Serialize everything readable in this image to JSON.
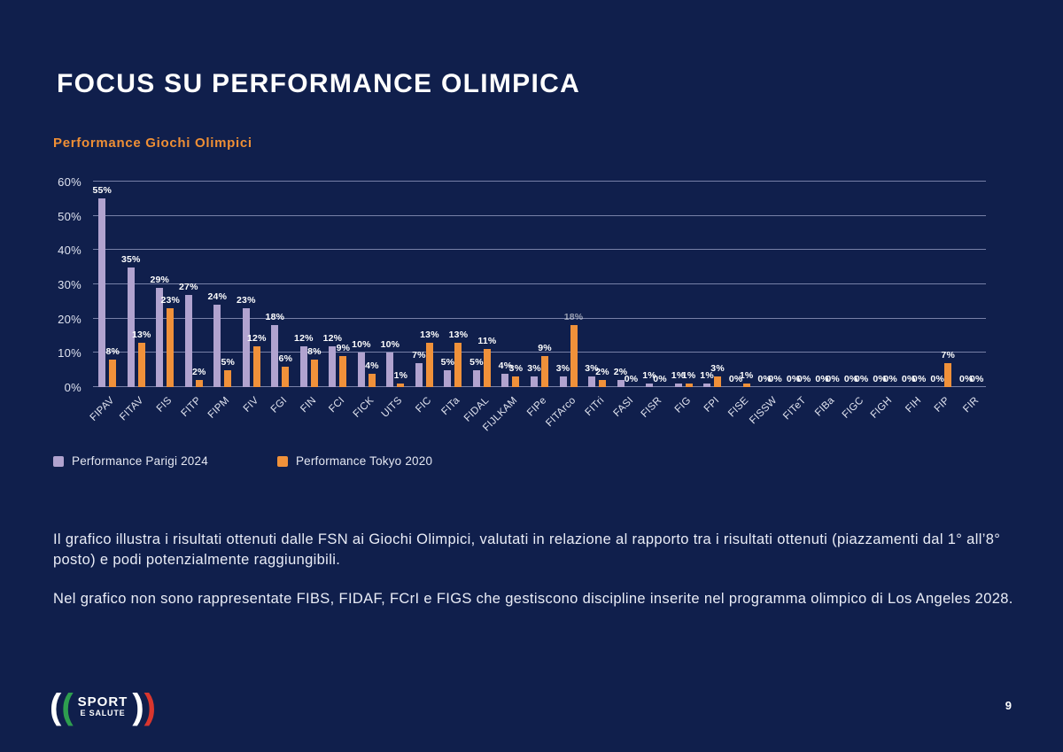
{
  "slide": {
    "title": "FOCUS SU PERFORMANCE OLIMPICA",
    "page_number": "9"
  },
  "chart_section": {
    "title": "Performance Giochi Olimpici"
  },
  "chart_data": {
    "type": "bar",
    "title": "Performance Giochi Olimpici",
    "categories": [
      "FIPAV",
      "FITAV",
      "FIS",
      "FITP",
      "FIPM",
      "FIV",
      "FGI",
      "FIN",
      "FCI",
      "FICK",
      "UITS",
      "FIC",
      "FITa",
      "FIDAL",
      "FIJLKAM",
      "FIPe",
      "FITArco",
      "FITri",
      "FASI",
      "FISR",
      "FIG",
      "FPI",
      "FISE",
      "FISSW",
      "FITeT",
      "FIBa",
      "FIGC",
      "FIGH",
      "FIH",
      "FIP",
      "FIR"
    ],
    "series": [
      {
        "name": "Performance Parigi 2024",
        "short": "parigi-2024",
        "color": "#b1a3cf",
        "values": [
          55,
          35,
          29,
          27,
          24,
          23,
          18,
          12,
          12,
          10,
          10,
          7,
          5,
          5,
          4,
          3,
          3,
          3,
          2,
          1,
          1,
          1,
          0,
          0,
          0,
          0,
          0,
          0,
          0,
          0,
          0
        ]
      },
      {
        "name": "Performance Tokyo 2020",
        "short": "tokyo-2020",
        "color": "#f0913a",
        "values": [
          8,
          13,
          23,
          2,
          5,
          12,
          6,
          8,
          9,
          4,
          1,
          13,
          13,
          11,
          3,
          9,
          18,
          2,
          0,
          0,
          1,
          3,
          1,
          0,
          0,
          0,
          0,
          0,
          0,
          7,
          0
        ]
      }
    ],
    "ylim": [
      0,
      60
    ],
    "yticks": [
      {
        "value": 0,
        "label": "0%"
      },
      {
        "value": 10,
        "label": "10%"
      },
      {
        "value": 20,
        "label": "20%"
      },
      {
        "value": 30,
        "label": "30%"
      },
      {
        "value": 40,
        "label": "40%"
      },
      {
        "value": 50,
        "label": "50%"
      },
      {
        "value": 60,
        "label": "60%"
      }
    ],
    "grid": true,
    "value_labels": true,
    "value_label_suffix": "%",
    "legend_position": "bottom-left",
    "muted_value_label": {
      "series_index": 1,
      "category_index": 16
    }
  },
  "legend": {
    "items": [
      {
        "label": "Performance Parigi 2024",
        "color": "#b1a3cf"
      },
      {
        "label": "Performance Tokyo 2020",
        "color": "#f0913a"
      }
    ]
  },
  "body": {
    "paragraph1": "Il grafico illustra i risultati ottenuti dalle FSN ai Giochi Olimpici, valutati in relazione al rapporto tra i risultati ottenuti (piazzamenti dal 1° all’8° posto) e podi potenzialmente raggiungibili.",
    "paragraph2": "Nel grafico non sono rappresentate FIBS, FIDAF, FCrI e FIGS che gestiscono discipline inserite nel programma olimpico di Los Angeles 2028."
  },
  "logo": {
    "name": "Sport e Salute",
    "line1": "SPORT",
    "line2": "E SALUTE"
  },
  "colors": {
    "background": "#101f4c",
    "accent_orange": "#ef8f35",
    "bar_purple": "#b1a3cf",
    "bar_orange": "#f0913a",
    "grid": "#9aa2c6",
    "text": "#e9ecf6"
  }
}
